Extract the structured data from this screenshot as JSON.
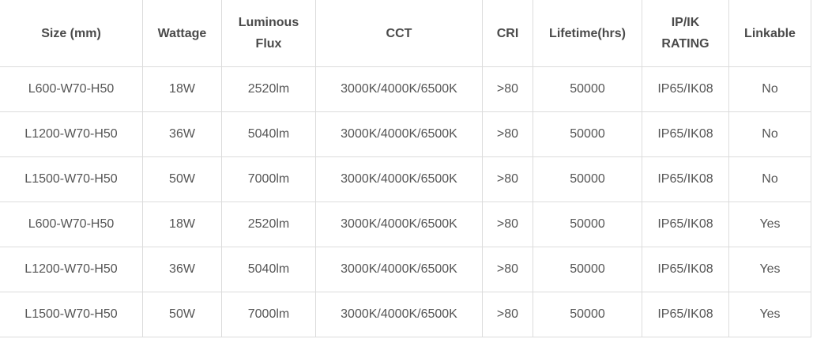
{
  "headers": [
    "Size (mm)",
    "Wattage",
    "Luminous Flux",
    "CCT",
    "CRI",
    "Lifetime(hrs)",
    "IP/IK RATING",
    "Linkable"
  ],
  "rows": [
    [
      "L600-W70-H50",
      "18W",
      "2520lm",
      "3000K/4000K/6500K",
      ">80",
      "50000",
      "IP65/IK08",
      "No"
    ],
    [
      "L1200-W70-H50",
      "36W",
      "5040lm",
      "3000K/4000K/6500K",
      ">80",
      "50000",
      "IP65/IK08",
      "No"
    ],
    [
      "L1500-W70-H50",
      "50W",
      "7000lm",
      "3000K/4000K/6500K",
      ">80",
      "50000",
      "IP65/IK08",
      "No"
    ],
    [
      "L600-W70-H50",
      "18W",
      "2520lm",
      "3000K/4000K/6500K",
      ">80",
      "50000",
      "IP65/IK08",
      "Yes"
    ],
    [
      "L1200-W70-H50",
      "36W",
      "5040lm",
      "3000K/4000K/6500K",
      ">80",
      "50000",
      "IP65/IK08",
      "Yes"
    ],
    [
      "L1500-W70-H50",
      "50W",
      "7000lm",
      "3000K/4000K/6500K",
      ">80",
      "50000",
      "IP65/IK08",
      "Yes"
    ]
  ]
}
